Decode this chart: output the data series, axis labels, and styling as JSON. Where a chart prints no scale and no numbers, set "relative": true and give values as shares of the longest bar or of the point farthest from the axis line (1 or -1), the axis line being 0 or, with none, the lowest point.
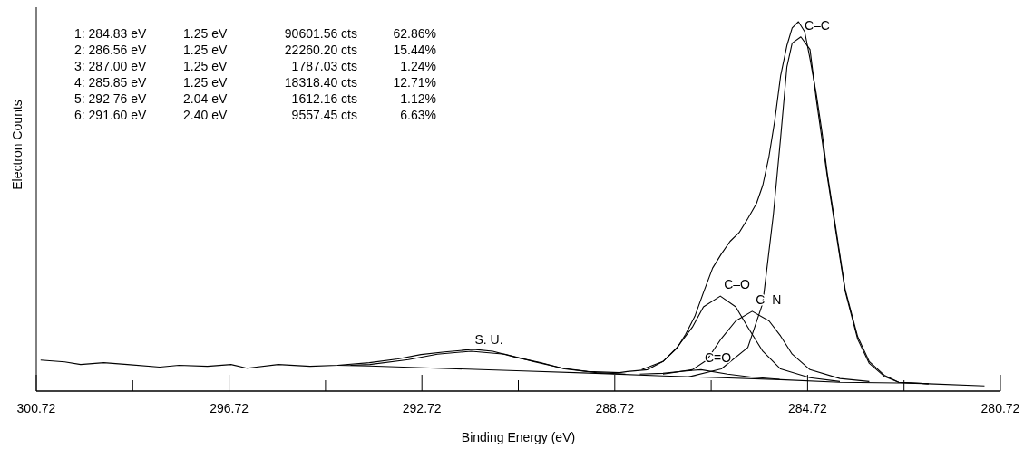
{
  "chart_data": {
    "type": "line",
    "xlabel": "Binding Energy (eV)",
    "ylabel": "Electron Counts",
    "relative": true,
    "xlim": [
      300.72,
      280.72
    ],
    "xticks": [
      300.72,
      {
        "value": 298.72,
        "label": null
      },
      296.72,
      {
        "value": 294.72,
        "label": null
      },
      292.72,
      {
        "value": 290.72,
        "label": null
      },
      288.72,
      {
        "value": 286.72,
        "label": null
      },
      284.72,
      {
        "value": 282.72,
        "label": null
      },
      280.72
    ],
    "annotations": [
      "1: 284.83 eV  1.25 eV  90601.56 cts  62.86%",
      "2: 286.56 eV  1.25 eV  22260.20 cts  15.44%",
      "3: 287.00 eV  1.25 eV  1787.03 cts  1.24%",
      "4: 285.85 eV  1.25 eV  18318.40 cts  12.71%",
      "5: 292 76 eV  2.04 eV  1612.16 cts  1.12%",
      "6: 291.60 eV  2.40 eV  9557.45 cts  6.63%"
    ],
    "series": [
      {
        "color": "#000000",
        "x": [
          300.63,
          300.13,
          299.8,
          299.32,
          298.83,
          298.16,
          297.76,
          297.17,
          296.68,
          296.35,
          295.7,
          295.04,
          294.47,
          293.81,
          293.22,
          292.74,
          292.25,
          291.66,
          291.25,
          290.76,
          290.26,
          289.76,
          289.29,
          288.62,
          288.46,
          288.04,
          287.72,
          287.43,
          287.25,
          287.06,
          286.88,
          286.69,
          286.51,
          286.33,
          286.14,
          285.96,
          285.78,
          285.65,
          285.52,
          285.4,
          285.28,
          285.15,
          285.04,
          284.91,
          284.78,
          284.67,
          284.54,
          284.42,
          284.31,
          284.12,
          283.94,
          283.68,
          283.44,
          283.13,
          282.83,
          282.21,
          281.05
        ],
        "values": [
          0.084,
          0.079,
          0.072,
          0.077,
          0.072,
          0.065,
          0.07,
          0.067,
          0.072,
          0.062,
          0.072,
          0.067,
          0.07,
          0.077,
          0.087,
          0.099,
          0.106,
          0.113,
          0.108,
          0.091,
          0.077,
          0.06,
          0.053,
          0.05,
          0.053,
          0.058,
          0.08,
          0.116,
          0.154,
          0.202,
          0.267,
          0.333,
          0.371,
          0.405,
          0.429,
          0.467,
          0.508,
          0.557,
          0.636,
          0.733,
          0.853,
          0.935,
          0.983,
          1,
          0.973,
          0.9,
          0.805,
          0.7,
          0.588,
          0.429,
          0.275,
          0.147,
          0.08,
          0.043,
          0.024,
          0.02,
          0.014
        ]
      },
      {
        "color": "#000000",
        "x": [
          294.47,
          293.81,
          292.41,
          290.76,
          289.12,
          287.72,
          286.51,
          285.28,
          284.05,
          282.83,
          282.21
        ],
        "values": [
          0.07,
          0.068,
          0.062,
          0.055,
          0.048,
          0.041,
          0.036,
          0.031,
          0.024,
          0.022,
          0.02
        ]
      },
      {
        "name": "C–C",
        "color": "#000000",
        "x": [
          287.2,
          286.51,
          285.96,
          285.65,
          285.43,
          285.28,
          285.15,
          285.04,
          284.86,
          284.67,
          284.54,
          284.31,
          284.12,
          283.94,
          283.68,
          283.44,
          283.13,
          282.83,
          282.21
        ],
        "values": [
          0.038,
          0.06,
          0.118,
          0.238,
          0.478,
          0.685,
          0.877,
          0.942,
          0.959,
          0.925,
          0.79,
          0.58,
          0.42,
          0.27,
          0.14,
          0.075,
          0.04,
          0.024,
          0.02
        ]
      },
      {
        "name": "C–O",
        "color": "#000000",
        "x": [
          288.16,
          287.72,
          287.43,
          287.11,
          286.88,
          286.53,
          286.21,
          285.96,
          285.65,
          285.28,
          284.67,
          284.05
        ],
        "values": [
          0.058,
          0.08,
          0.118,
          0.173,
          0.228,
          0.257,
          0.228,
          0.173,
          0.108,
          0.06,
          0.036,
          0.026
        ]
      },
      {
        "name": "C–N",
        "color": "#000000",
        "x": [
          287.72,
          287.11,
          286.81,
          286.51,
          286.21,
          285.87,
          285.52,
          285.28,
          285.04,
          284.67,
          284.05,
          283.44
        ],
        "values": [
          0.046,
          0.058,
          0.084,
          0.142,
          0.19,
          0.216,
          0.19,
          0.149,
          0.1,
          0.058,
          0.034,
          0.026
        ]
      },
      {
        "name": "C=O",
        "color": "#000000",
        "x": [
          288.2,
          287.72,
          287.3,
          286.93,
          286.38,
          285.89,
          285.3
        ],
        "values": [
          0.046,
          0.048,
          0.054,
          0.058,
          0.046,
          0.038,
          0.032
        ]
      },
      {
        "name": "S. U.",
        "color": "#000000",
        "x": [
          294.2,
          293.8,
          293.0,
          292.4,
          291.7,
          291.0,
          290.4,
          289.8,
          289.1,
          288.5
        ],
        "values": [
          0.07,
          0.072,
          0.085,
          0.1,
          0.108,
          0.1,
          0.08,
          0.062,
          0.05,
          0.046
        ]
      }
    ]
  }
}
